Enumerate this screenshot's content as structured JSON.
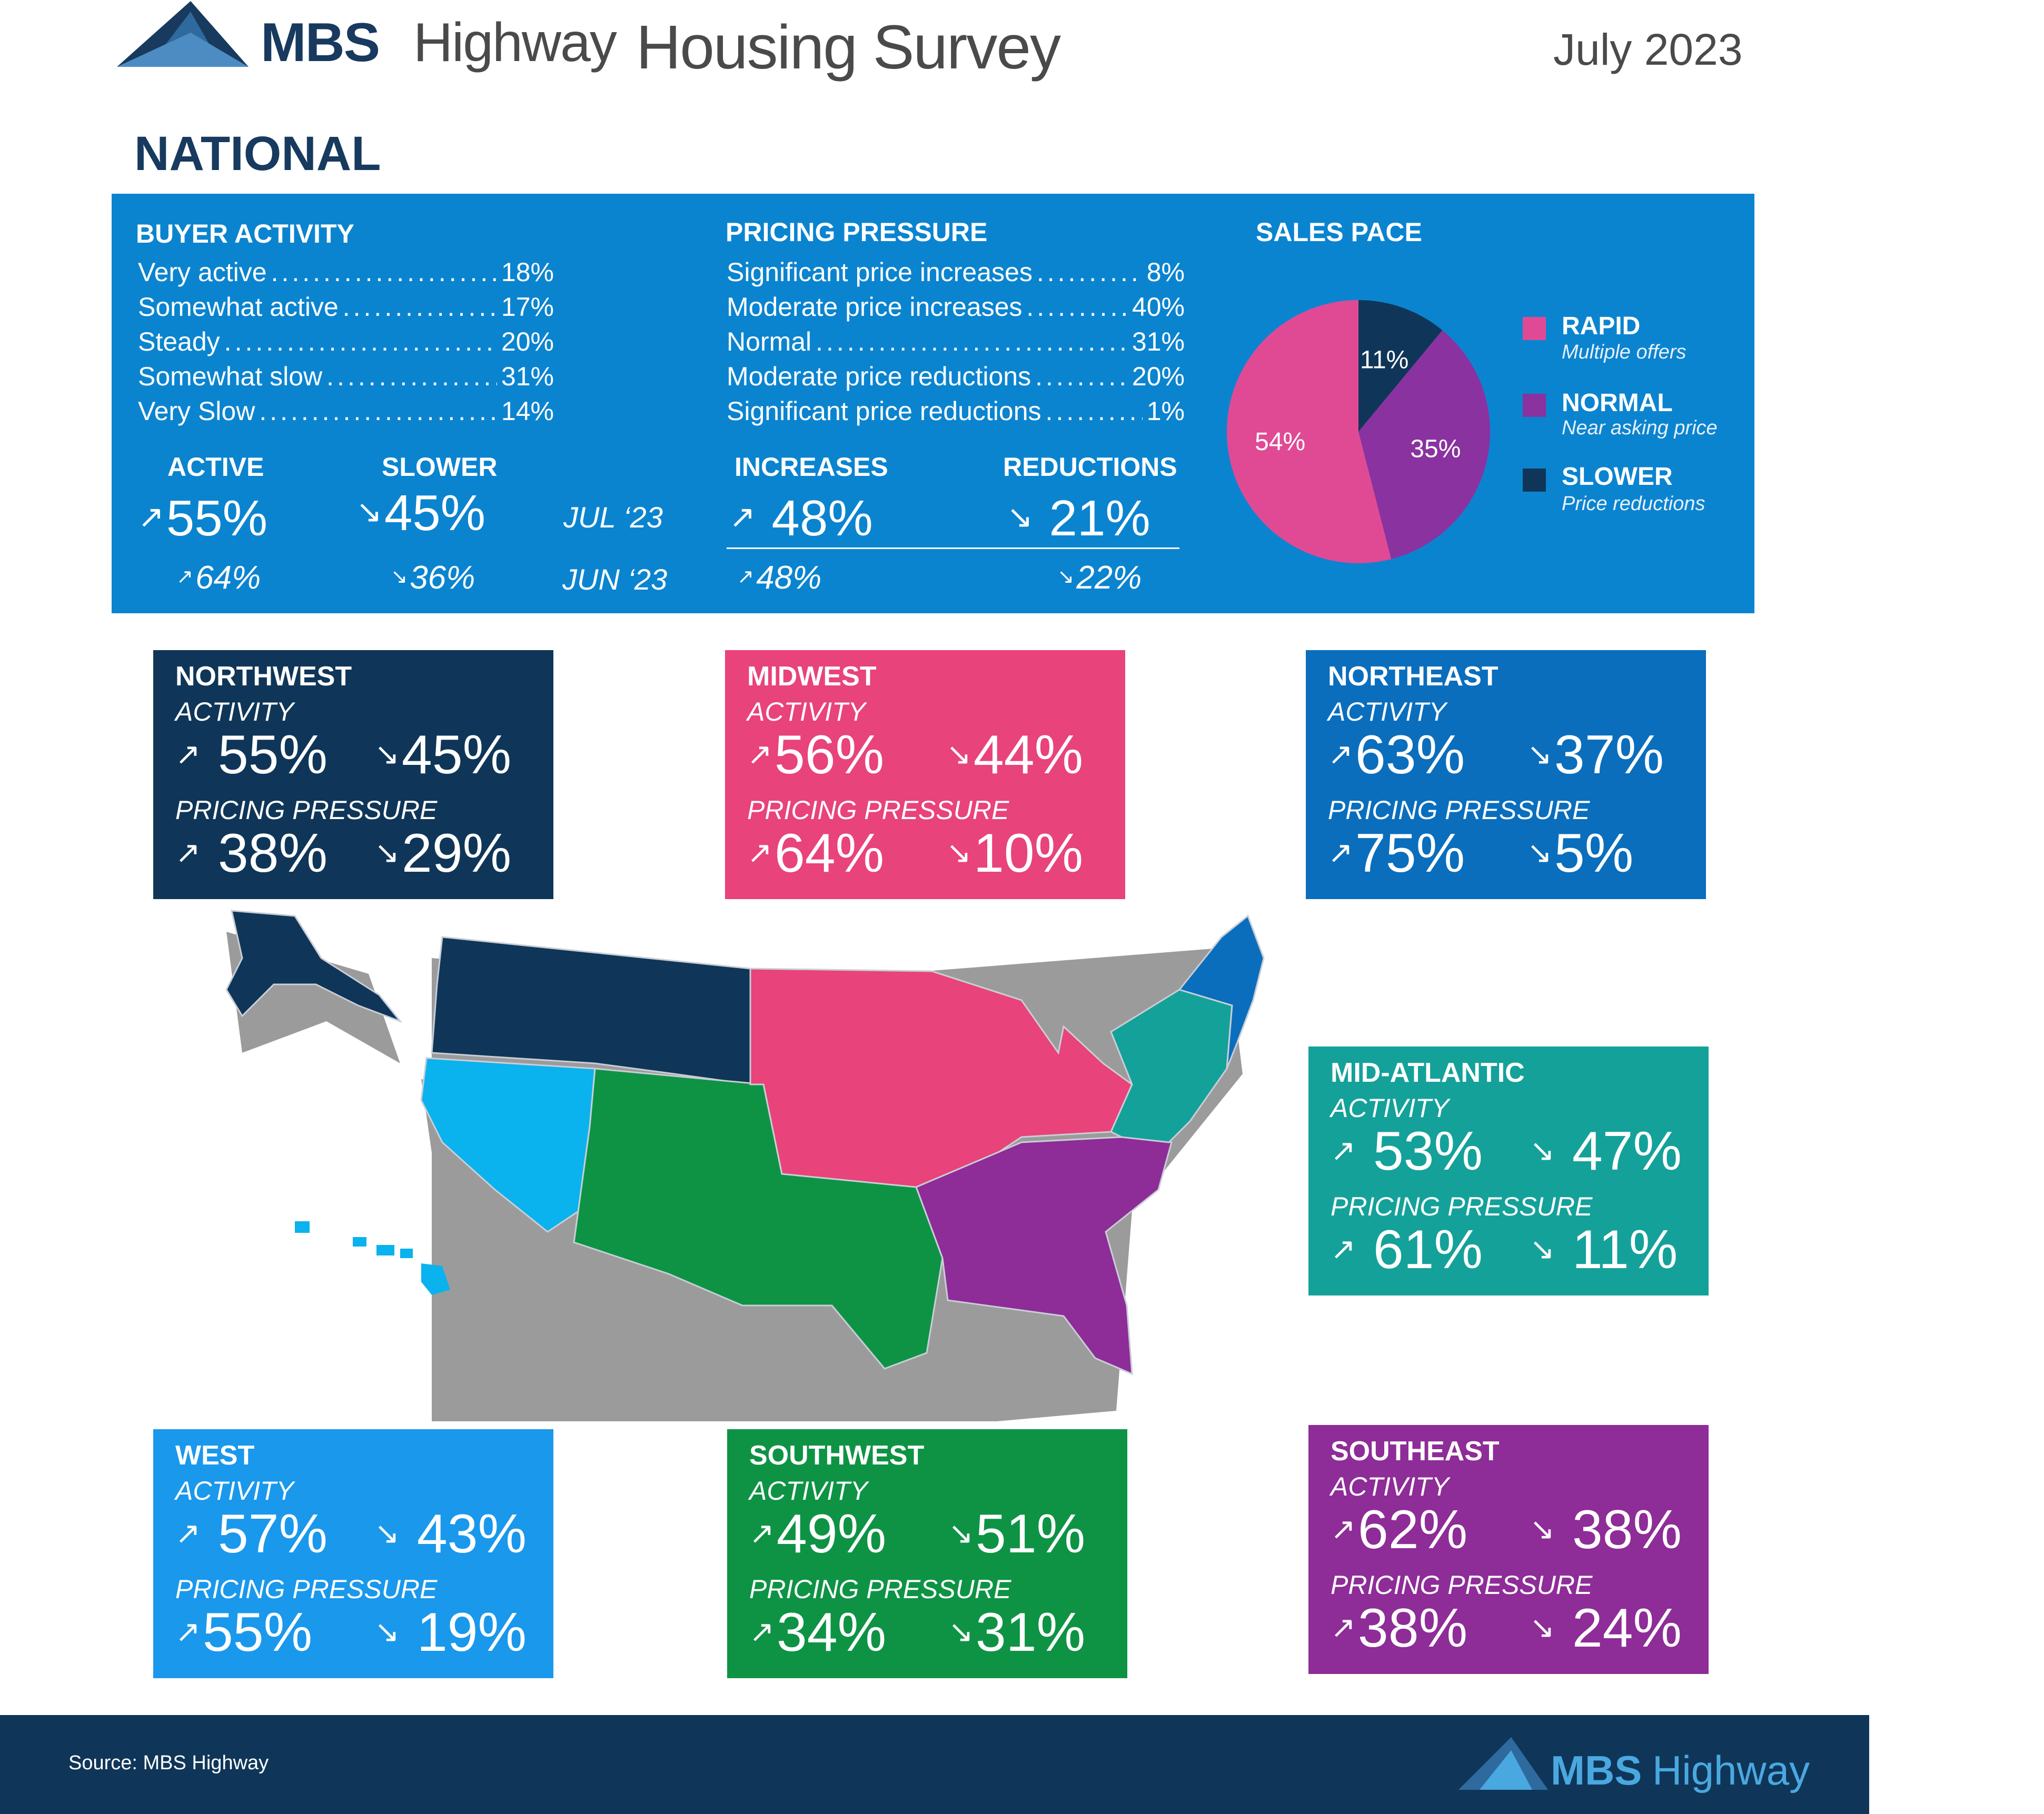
{
  "header": {
    "brand": "MBS",
    "brand_rest": "Highway",
    "title": "Housing Survey",
    "date": "July 2023",
    "section": "NATIONAL"
  },
  "national": {
    "buyer_activity": {
      "title": "BUYER ACTIVITY",
      "rows": [
        {
          "label": "Very active",
          "value": "18%"
        },
        {
          "label": "Somewhat active",
          "value": "17%"
        },
        {
          "label": "Steady",
          "value": "20%"
        },
        {
          "label": "Somewhat slow",
          "value": "31%"
        },
        {
          "label": "Very Slow",
          "value": "14%"
        }
      ]
    },
    "pricing_pressure": {
      "title": "PRICING PRESSURE",
      "rows": [
        {
          "label": "Significant price increases",
          "value": "8%"
        },
        {
          "label": "Moderate price increases",
          "value": "40%"
        },
        {
          "label": "Normal",
          "value": "31%"
        },
        {
          "label": "Moderate price reductions",
          "value": "20%"
        },
        {
          "label": "Significant price reductions",
          "value": "1%"
        }
      ]
    },
    "summary": {
      "active_label": "ACTIVE",
      "slower_label": "SLOWER",
      "increases_label": "INCREASES",
      "reductions_label": "REDUCTIONS",
      "jul_label": "JUL ‘23",
      "jun_label": "JUN ‘23",
      "jul": {
        "active": "55%",
        "slower": "45%",
        "increases": "48%",
        "reductions": "21%"
      },
      "jun": {
        "active": "64%",
        "slower": "36%",
        "increases": "48%",
        "reductions": "22%"
      }
    },
    "sales_pace": {
      "title": "SALES PACE",
      "legend": [
        {
          "label": "RAPID",
          "sub": "Multiple offers",
          "color": "#e04a95"
        },
        {
          "label": "NORMAL",
          "sub": "Near asking price",
          "color": "#8a32a0"
        },
        {
          "label": "SLOWER",
          "sub": "Price reductions",
          "color": "#0f3658"
        }
      ]
    }
  },
  "chart_data": {
    "type": "pie",
    "title": "SALES PACE",
    "categories": [
      "RAPID",
      "NORMAL",
      "SLOWER"
    ],
    "values": [
      54,
      35,
      11
    ],
    "labels": [
      "54%",
      "35%",
      "11%"
    ],
    "colors": [
      "#e04a95",
      "#8a32a0",
      "#0f3658"
    ]
  },
  "regions": {
    "northwest": {
      "name": "NORTHWEST",
      "activity_label": "ACTIVITY",
      "pricing_label": "PRICING PRESSURE",
      "act_up": "55%",
      "act_down": "45%",
      "price_up": "38%",
      "price_down": "29%",
      "color": "#0f3658"
    },
    "midwest": {
      "name": "MIDWEST",
      "activity_label": "ACTIVITY",
      "pricing_label": "PRICING PRESSURE",
      "act_up": "56%",
      "act_down": "44%",
      "price_up": "64%",
      "price_down": "10%",
      "color": "#e8437a"
    },
    "northeast": {
      "name": "NORTHEAST",
      "activity_label": "ACTIVITY",
      "pricing_label": "PRICING PRESSURE",
      "act_up": "63%",
      "act_down": "37%",
      "price_up": "75%",
      "price_down": "5%",
      "color": "#0a6ebd"
    },
    "midatlantic": {
      "name": "MID-ATLANTIC",
      "activity_label": "ACTIVITY",
      "pricing_label": "PRICING PRESSURE",
      "act_up": "53%",
      "act_down": "47%",
      "price_up": "61%",
      "price_down": "11%",
      "color": "#14a19a"
    },
    "west": {
      "name": "WEST",
      "activity_label": "ACTIVITY",
      "pricing_label": "PRICING PRESSURE",
      "act_up": "57%",
      "act_down": "43%",
      "price_up": "55%",
      "price_down": "19%",
      "color": "#1a98ec"
    },
    "southwest": {
      "name": "SOUTHWEST",
      "activity_label": "ACTIVITY",
      "pricing_label": "PRICING PRESSURE",
      "act_up": "49%",
      "act_down": "51%",
      "price_up": "34%",
      "price_down": "31%",
      "color": "#0e9345"
    },
    "southeast": {
      "name": "SOUTHEAST",
      "activity_label": "ACTIVITY",
      "pricing_label": "PRICING PRESSURE",
      "act_up": "62%",
      "act_down": "38%",
      "price_up": "38%",
      "price_down": "24%",
      "color": "#8e2c98"
    }
  },
  "map_colors": {
    "northwest": "#0f3658",
    "west": "#0ab2ee",
    "southwest": "#0e9345",
    "midwest": "#e8437a",
    "southeast": "#8e2c98",
    "midatlantic": "#14a19a",
    "northeast": "#0a6ebd",
    "extrude": "#9b9b9b"
  },
  "footer": {
    "source": "Source: MBS Highway",
    "brand": "MBS",
    "brand_rest": "Highway"
  }
}
